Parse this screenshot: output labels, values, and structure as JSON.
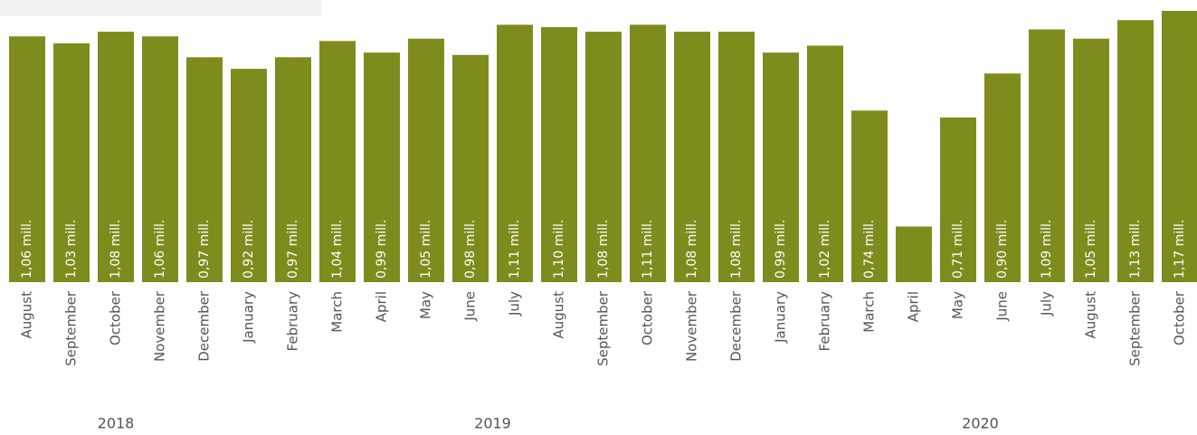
{
  "chart_data": {
    "type": "bar",
    "categories": [
      "August",
      "September",
      "October",
      "November",
      "December",
      "January",
      "February",
      "March",
      "April",
      "May",
      "June",
      "July",
      "August",
      "September",
      "October",
      "November",
      "December",
      "January",
      "February",
      "March",
      "April",
      "May",
      "June",
      "July",
      "August",
      "September",
      "October"
    ],
    "values": [
      1.06,
      1.03,
      1.08,
      1.06,
      0.97,
      0.92,
      0.97,
      1.04,
      0.99,
      1.05,
      0.98,
      1.11,
      1.1,
      1.08,
      1.11,
      1.08,
      1.08,
      0.99,
      1.02,
      0.74,
      0.24,
      0.71,
      0.9,
      1.09,
      1.05,
      1.13,
      1.17
    ],
    "value_labels": [
      "1,06 mill.",
      "1,03 mill.",
      "1,08 mill.",
      "1,06 mill.",
      "0,97 mill.",
      "0,92 mill.",
      "0,97 mill.",
      "1,04 mill.",
      "0,99 mill.",
      "1,05 mill.",
      "0,98 mill.",
      "1,11 mill.",
      "1,10 mill.",
      "1,08 mill.",
      "1,11 mill.",
      "1,08 mill.",
      "1,08 mill.",
      "0,99 mill.",
      "1,02 mill.",
      "0,74 mill.",
      null,
      "0,71 mill.",
      "0,90 mill.",
      "1,09 mill.",
      "1,05 mill.",
      "1,13 mill.",
      "1,17 mill."
    ],
    "category_groups": [
      {
        "label": "2018",
        "size": 5
      },
      {
        "label": "2019",
        "size": 12
      },
      {
        "label": "2020",
        "size": 10
      }
    ],
    "color": "#7f8c1d",
    "ylim": [
      0,
      1.17
    ]
  }
}
